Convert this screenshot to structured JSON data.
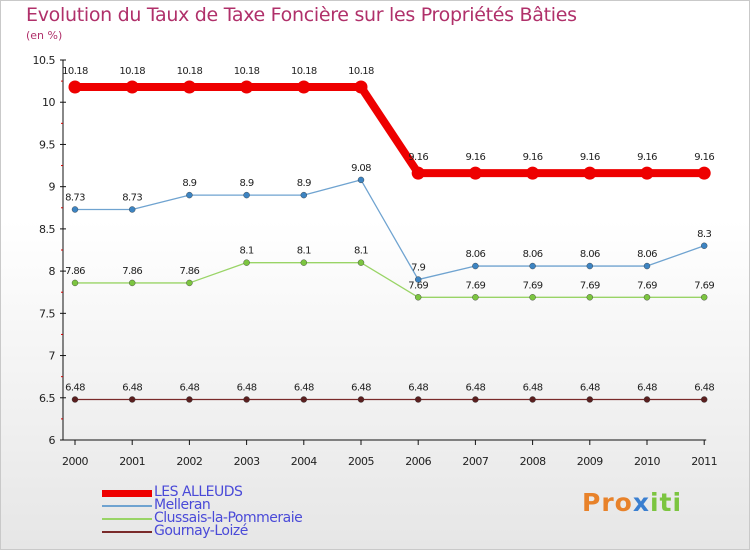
{
  "title": "Evolution du Taux de Taxe Foncière sur les Propriétés Bâties",
  "subtitle": "(en %)",
  "logo": {
    "parts": [
      "Pro",
      "x",
      "iti"
    ],
    "colors": [
      "#e8822a",
      "#3a7fd0",
      "#7cc540"
    ]
  },
  "chart_data": {
    "type": "line",
    "title": "Evolution du Taux de Taxe Foncière sur les Propriétés Bâties",
    "ylabel": "(en %)",
    "xlabel": "",
    "categories": [
      "2000",
      "2001",
      "2002",
      "2003",
      "2004",
      "2005",
      "2006",
      "2007",
      "2008",
      "2009",
      "2010",
      "2011"
    ],
    "ylim": [
      6,
      10.5
    ],
    "yticks": [
      "6",
      "6.5",
      "7",
      "7.5",
      "8",
      "8.5",
      "9",
      "9.5",
      "10",
      "10.5"
    ],
    "grid": false,
    "legend_position": "bottom-left",
    "series": [
      {
        "name": "Gournay-Loizé",
        "color": "#7a2a2a",
        "marker": "#5a1f1f",
        "values": [
          6.48,
          6.48,
          6.48,
          6.48,
          6.48,
          6.48,
          6.48,
          6.48,
          6.48,
          6.48,
          6.48,
          6.48
        ],
        "labels": [
          "6.48",
          "6.48",
          "6.48",
          "6.48",
          "6.48",
          "6.48",
          "6.48",
          "6.48",
          "6.48",
          "6.48",
          "6.48",
          "6.48"
        ]
      },
      {
        "name": "Clussais-la-Pommeraie",
        "color": "#99d466",
        "marker": "#7cc540",
        "values": [
          7.86,
          7.86,
          7.86,
          8.1,
          8.1,
          8.1,
          7.69,
          7.69,
          7.69,
          7.69,
          7.69,
          7.69
        ],
        "labels": [
          "7.86",
          "7.86",
          "7.86",
          "8.1",
          "8.1",
          "8.1",
          "7.69",
          "7.69",
          "7.69",
          "7.69",
          "7.69",
          "7.69"
        ]
      },
      {
        "name": "Melleran",
        "color": "#6fa3d0",
        "marker": "#3d84c2",
        "values": [
          8.73,
          8.73,
          8.9,
          8.9,
          8.9,
          9.08,
          7.9,
          8.06,
          8.06,
          8.06,
          8.06,
          8.3
        ],
        "labels": [
          "8.73",
          "8.73",
          "8.9",
          "8.9",
          "8.9",
          "9.08",
          "7.9",
          "8.06",
          "8.06",
          "8.06",
          "8.06",
          "8.3"
        ]
      },
      {
        "name": "LES ALLEUDS",
        "color": "#ee0000",
        "marker": "#ee0000",
        "values": [
          10.18,
          10.18,
          10.18,
          10.18,
          10.18,
          10.18,
          9.16,
          9.16,
          9.16,
          9.16,
          9.16,
          9.16
        ],
        "labels": [
          "10.18",
          "10.18",
          "10.18",
          "10.18",
          "10.18",
          "10.18",
          "9.16",
          "9.16",
          "9.16",
          "9.16",
          "9.16",
          "9.16"
        ]
      }
    ],
    "legend": [
      "LES ALLEUDS",
      "Melleran",
      "Clussais-la-Pommeraie",
      "Gournay-Loizé"
    ]
  }
}
